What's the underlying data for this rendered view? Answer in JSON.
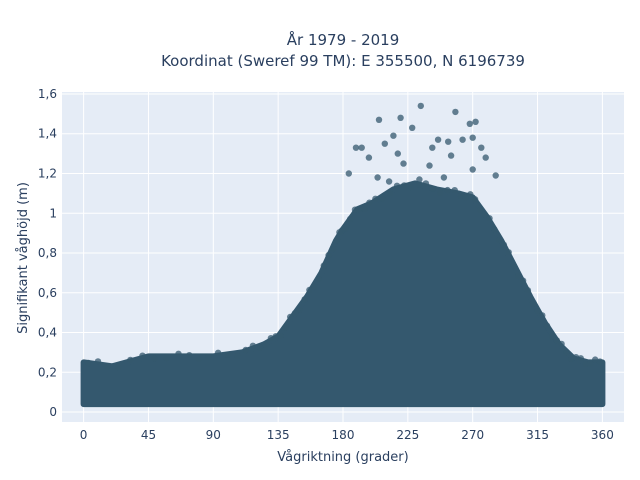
{
  "chart_data": {
    "type": "scatter",
    "title_lines": [
      "År 1979 - 2019",
      "Koordinat (Sweref 99 TM): E 355500, N 6196739"
    ],
    "xlabel": "Vågriktning (grader)",
    "ylabel": "Signifikant våghöjd (m)",
    "xlim": [
      -15,
      375
    ],
    "ylim": [
      -0.05,
      1.61
    ],
    "xticks": [
      0,
      45,
      90,
      135,
      180,
      225,
      270,
      315,
      360
    ],
    "xtick_labels": [
      "0",
      "45",
      "90",
      "135",
      "180",
      "225",
      "270",
      "315",
      "360"
    ],
    "yticks": [
      0,
      0.2,
      0.4,
      0.6,
      0.8,
      1.0,
      1.2,
      1.4,
      1.6
    ],
    "ytick_labels": [
      "0",
      "0,2",
      "0,4",
      "0,6",
      "0,8",
      "1",
      "1,2",
      "1,4",
      "1,6"
    ],
    "grid": true,
    "marker_color": "#34586e",
    "plot_background": "#e5ecf6",
    "envelope_upper": [
      [
        0,
        0.25
      ],
      [
        20,
        0.23
      ],
      [
        45,
        0.28
      ],
      [
        70,
        0.28
      ],
      [
        90,
        0.28
      ],
      [
        110,
        0.3
      ],
      [
        125,
        0.34
      ],
      [
        135,
        0.38
      ],
      [
        145,
        0.48
      ],
      [
        155,
        0.58
      ],
      [
        165,
        0.7
      ],
      [
        175,
        0.86
      ],
      [
        180,
        0.92
      ],
      [
        190,
        1.02
      ],
      [
        200,
        1.05
      ],
      [
        215,
        1.12
      ],
      [
        230,
        1.15
      ],
      [
        245,
        1.12
      ],
      [
        260,
        1.1
      ],
      [
        270,
        1.08
      ],
      [
        280,
        0.98
      ],
      [
        290,
        0.86
      ],
      [
        300,
        0.72
      ],
      [
        310,
        0.58
      ],
      [
        320,
        0.45
      ],
      [
        330,
        0.34
      ],
      [
        340,
        0.27
      ],
      [
        350,
        0.25
      ],
      [
        360,
        0.25
      ]
    ],
    "envelope_lower": [
      [
        0,
        0.04
      ],
      [
        360,
        0.04
      ]
    ],
    "outliers": [
      {
        "x": 234,
        "y": 1.54
      },
      {
        "x": 258,
        "y": 1.51
      },
      {
        "x": 268,
        "y": 1.45
      },
      {
        "x": 272,
        "y": 1.46
      },
      {
        "x": 220,
        "y": 1.48
      },
      {
        "x": 205,
        "y": 1.47
      },
      {
        "x": 228,
        "y": 1.43
      },
      {
        "x": 215,
        "y": 1.39
      },
      {
        "x": 246,
        "y": 1.37
      },
      {
        "x": 253,
        "y": 1.36
      },
      {
        "x": 263,
        "y": 1.37
      },
      {
        "x": 270,
        "y": 1.38
      },
      {
        "x": 209,
        "y": 1.35
      },
      {
        "x": 189,
        "y": 1.33
      },
      {
        "x": 193,
        "y": 1.33
      },
      {
        "x": 242,
        "y": 1.33
      },
      {
        "x": 276,
        "y": 1.33
      },
      {
        "x": 218,
        "y": 1.3
      },
      {
        "x": 255,
        "y": 1.29
      },
      {
        "x": 279,
        "y": 1.28
      },
      {
        "x": 198,
        "y": 1.28
      },
      {
        "x": 222,
        "y": 1.25
      },
      {
        "x": 240,
        "y": 1.24
      },
      {
        "x": 270,
        "y": 1.22
      },
      {
        "x": 184,
        "y": 1.2
      },
      {
        "x": 204,
        "y": 1.18
      },
      {
        "x": 286,
        "y": 1.19
      },
      {
        "x": 250,
        "y": 1.18
      },
      {
        "x": 212,
        "y": 1.16
      },
      {
        "x": 233,
        "y": 1.17
      }
    ]
  }
}
